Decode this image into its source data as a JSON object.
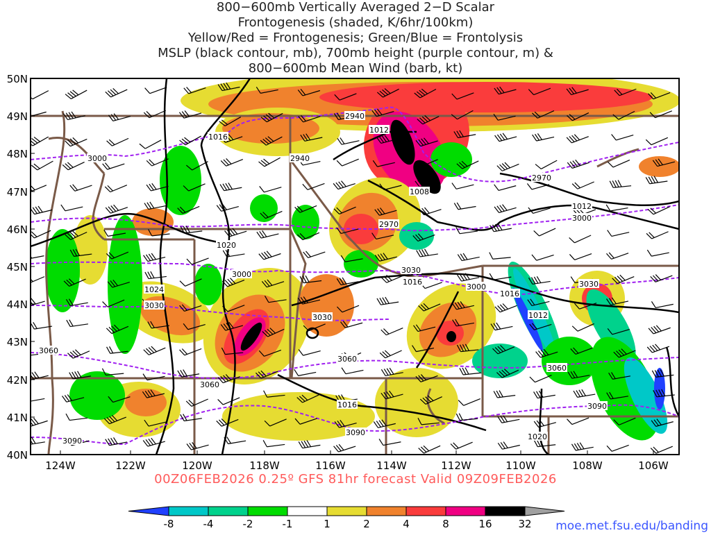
{
  "title_lines": [
    "800−600mb Vertically Averaged 2−D Scalar",
    "Frontogenesis (shaded, K/6hr/100km)",
    "Yellow/Red = Frontogenesis;  Green/Blue = Frontolysis",
    "MSLP (black contour, mb), 700mb height (purple contour, m) &",
    "800−600mb Mean Wind (barb, kt)"
  ],
  "valid_text": "00Z06FEB2026 0.25º GFS 81hr forecast Valid 09Z09FEB2026",
  "source_link": "moe.met.fsu.edu/banding",
  "lat_labels": [
    "50N",
    "49N",
    "48N",
    "47N",
    "46N",
    "45N",
    "44N",
    "43N",
    "42N",
    "41N",
    "40N"
  ],
  "lon_labels": [
    "124W",
    "122W",
    "120W",
    "118W",
    "116W",
    "114W",
    "112W",
    "110W",
    "108W",
    "106W"
  ],
  "colorbar": {
    "ticks": [
      "-8",
      "-4",
      "-2",
      "-1",
      "1",
      "2",
      "4",
      "8",
      "16",
      "32"
    ],
    "colors": [
      "#2040ff",
      "#00c8c8",
      "#00d28c",
      "#00dc00",
      "#ffffff",
      "#e6dc32",
      "#f0822d",
      "#fa3c3c",
      "#f00082",
      "#000000",
      "#a0a0a0"
    ]
  },
  "contour_labels": {
    "mslp": [
      "1016",
      "1012",
      "1008",
      "1012",
      "1020",
      "1024",
      "1016",
      "1016",
      "1012",
      "1016",
      "1020"
    ],
    "height": [
      "2940",
      "2940",
      "3000",
      "2970",
      "2970",
      "3000",
      "3000",
      "3030",
      "3000",
      "3030",
      "3030",
      "3030",
      "3060",
      "3060",
      "3060",
      "3060",
      "3090",
      "3090",
      "3090"
    ]
  },
  "colors": {
    "mslp": "#000000",
    "height": "#a020f0",
    "borders": "#7a5a48",
    "valid": "#ff5a5a"
  }
}
